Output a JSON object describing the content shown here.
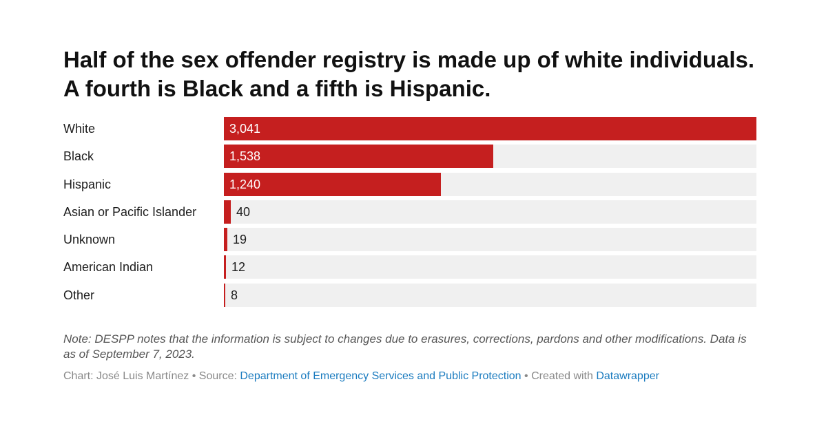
{
  "title": "Half of the sex offender registry is made up of white individuals. A fourth is Black and a fifth is Hispanic.",
  "note": "Note: DESPP notes that the information is subject to changes due to erasures, corrections, pardons and other modifications. Data is as of September 7, 2023.",
  "footer": {
    "chart_prefix": "Chart: José Luis Martínez • Source: ",
    "source_link": "Department of Emergency Services and Public Protection",
    "created_prefix": " • Created with ",
    "tool_link": "Datawrapper"
  },
  "colors": {
    "bar": "#c51f1f",
    "track": "#f0f0f0",
    "link": "#1a7bbf"
  },
  "chart_data": {
    "type": "bar",
    "orientation": "horizontal",
    "categories": [
      "White",
      "Black",
      "Hispanic",
      "Asian or Pacific Islander",
      "Unknown",
      "American Indian",
      "Other"
    ],
    "values": [
      3041,
      1538,
      1240,
      40,
      19,
      12,
      8
    ],
    "value_labels": [
      "3,041",
      "1,538",
      "1,240",
      "40",
      "19",
      "12",
      "8"
    ],
    "xlim": [
      0,
      3041
    ],
    "grid": false,
    "legend": "none"
  }
}
